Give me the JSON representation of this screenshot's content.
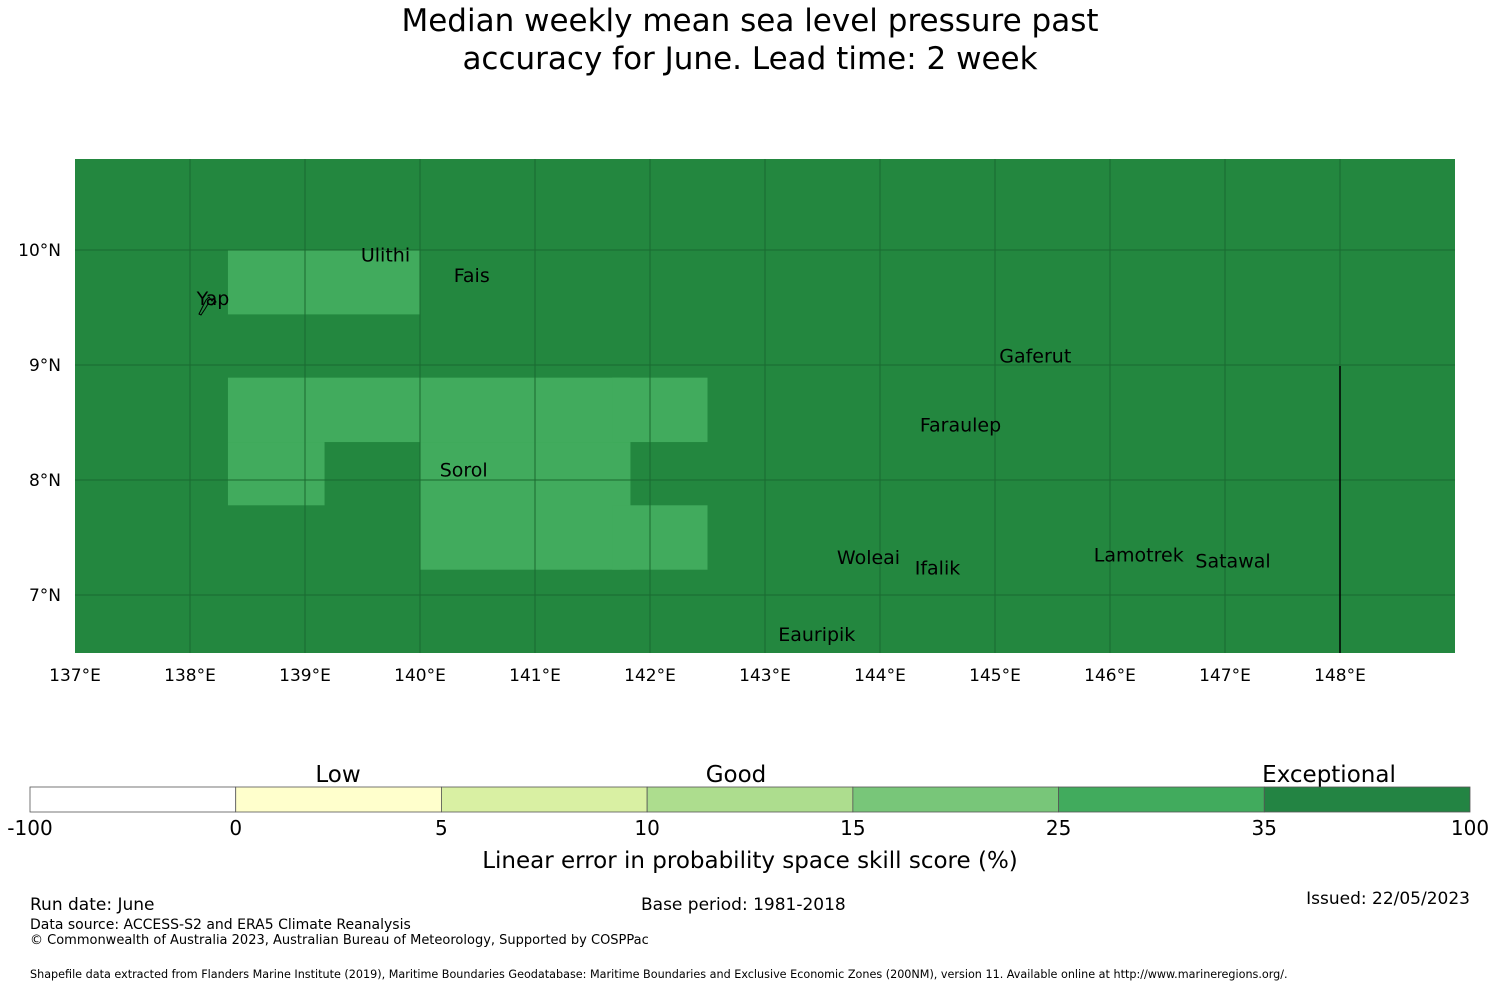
{
  "title": {
    "line1": "Median weekly mean sea level pressure past",
    "line2": "accuracy for June. Lead time: 2 week"
  },
  "map": {
    "background_color": "#23873f",
    "x_ticks": [
      "137°E",
      "138°E",
      "139°E",
      "140°E",
      "141°E",
      "142°E",
      "143°E",
      "144°E",
      "145°E",
      "146°E",
      "147°E",
      "148°E"
    ],
    "y_ticks": [
      "10°N",
      "9°N",
      "8°N",
      "7°N"
    ],
    "places": [
      {
        "name": "Ulithi",
        "lon": 139.7,
        "lat": 9.9
      },
      {
        "name": "Fais",
        "lon": 140.45,
        "lat": 9.72
      },
      {
        "name": "Yap",
        "lon": 138.2,
        "lat": 9.52
      },
      {
        "name": "Gaferut",
        "lon": 145.35,
        "lat": 9.02
      },
      {
        "name": "Faraulep",
        "lon": 144.7,
        "lat": 8.42
      },
      {
        "name": "Sorol",
        "lon": 140.38,
        "lat": 8.03
      },
      {
        "name": "Woleai",
        "lon": 143.9,
        "lat": 7.27
      },
      {
        "name": "Ifalik",
        "lon": 144.5,
        "lat": 7.18
      },
      {
        "name": "Lamotrek",
        "lon": 146.25,
        "lat": 7.29
      },
      {
        "name": "Satawal",
        "lon": 147.07,
        "lat": 7.24
      },
      {
        "name": "Eauripik",
        "lon": 143.45,
        "lat": 6.6
      }
    ],
    "cells": [
      {
        "lon": [
          138.33,
          140.0
        ],
        "lat": [
          9.44,
          10.0
        ],
        "category": "25-35"
      },
      {
        "lon": [
          138.33,
          141.83
        ],
        "lat": [
          8.33,
          8.89
        ],
        "category": "25-35"
      },
      {
        "lon": [
          138.33,
          139.17
        ],
        "lat": [
          7.78,
          8.33
        ],
        "category": "25-35"
      },
      {
        "lon": [
          140.0,
          141.83
        ],
        "lat": [
          7.22,
          8.33
        ],
        "category": "25-35"
      },
      {
        "lon": [
          141.67,
          142.5
        ],
        "lat": [
          8.33,
          8.89
        ],
        "category": "25-35"
      },
      {
        "lon": [
          141.67,
          142.5
        ],
        "lat": [
          7.22,
          7.78
        ],
        "category": "25-35"
      }
    ]
  },
  "legend": {
    "category_labels": [
      "Low",
      "Good",
      "Exceptional"
    ],
    "bins": [
      {
        "from": "-100",
        "to": "0",
        "color": "#ffffff"
      },
      {
        "from": "0",
        "to": "5",
        "color": "#ffffcc"
      },
      {
        "from": "5",
        "to": "10",
        "color": "#d9f0a3"
      },
      {
        "from": "10",
        "to": "15",
        "color": "#addd8e"
      },
      {
        "from": "15",
        "to": "25",
        "color": "#78c679"
      },
      {
        "from": "25",
        "to": "35",
        "color": "#41ab5d"
      },
      {
        "from": "35",
        "to": "100",
        "color": "#238443"
      }
    ],
    "tick_labels": [
      "-100",
      "0",
      "5",
      "10",
      "15",
      "25",
      "35",
      "100"
    ],
    "axis_label": "Linear error in probability space skill score (%)"
  },
  "footer": {
    "run_date": "Run date: June",
    "base_period": "Base period: 1981-2018",
    "issued": "Issued: 22/05/2023",
    "data_source": "Data source: ACCESS-S2 and ERA5 Climate Reanalysis",
    "copyright": "© Commonwealth of Australia 2023, Australian Bureau of Meteorology, Supported by COSPPac",
    "shapefile_note": "Shapefile data extracted from Flanders Marine Institute (2019), Maritime Boundaries Geodatabase: Maritime Boundaries and Exclusive Economic Zones (200NM), version 11. Available online at http://www.marineregions.org/."
  }
}
